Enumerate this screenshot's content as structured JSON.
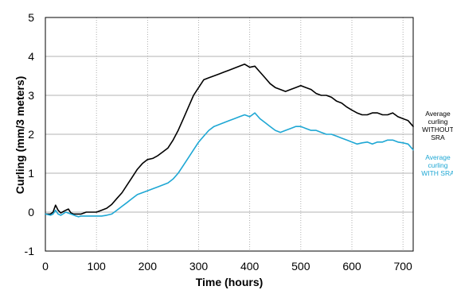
{
  "chart_data": {
    "type": "line",
    "xlabel": "Time (hours)",
    "ylabel": "Curling (mm/3 meters)",
    "xlim": [
      0,
      720
    ],
    "ylim": [
      -1,
      5
    ],
    "xticks": [
      0,
      100,
      200,
      300,
      400,
      500,
      600,
      700
    ],
    "yticks": [
      -1,
      0,
      1,
      2,
      3,
      4,
      5
    ],
    "grid": true,
    "legend_position": "right",
    "series": [
      {
        "name": "Average curling WITHOUT SRA",
        "legend_lines": [
          "Average",
          "curling",
          "WITHOUT",
          "SRA"
        ],
        "color": "#000000",
        "x": [
          0,
          10,
          15,
          20,
          25,
          30,
          40,
          45,
          50,
          55,
          60,
          65,
          70,
          80,
          90,
          100,
          110,
          120,
          130,
          140,
          150,
          160,
          170,
          180,
          190,
          200,
          210,
          220,
          230,
          240,
          250,
          260,
          270,
          280,
          290,
          300,
          310,
          320,
          330,
          340,
          350,
          360,
          370,
          380,
          390,
          400,
          410,
          420,
          430,
          440,
          450,
          460,
          470,
          480,
          490,
          500,
          510,
          520,
          530,
          540,
          550,
          560,
          570,
          580,
          590,
          600,
          610,
          620,
          630,
          640,
          650,
          660,
          670,
          680,
          690,
          700,
          710,
          720
        ],
        "y": [
          -0.05,
          -0.05,
          0.0,
          0.18,
          0.05,
          -0.02,
          0.05,
          0.08,
          -0.02,
          -0.05,
          -0.05,
          -0.05,
          -0.05,
          0.0,
          0.0,
          0.0,
          0.05,
          0.1,
          0.2,
          0.35,
          0.5,
          0.7,
          0.9,
          1.1,
          1.25,
          1.35,
          1.38,
          1.45,
          1.55,
          1.65,
          1.85,
          2.1,
          2.4,
          2.7,
          3.0,
          3.2,
          3.4,
          3.45,
          3.5,
          3.55,
          3.6,
          3.65,
          3.7,
          3.75,
          3.8,
          3.72,
          3.75,
          3.6,
          3.45,
          3.3,
          3.2,
          3.15,
          3.1,
          3.15,
          3.2,
          3.25,
          3.2,
          3.15,
          3.05,
          3.0,
          3.0,
          2.95,
          2.85,
          2.8,
          2.7,
          2.62,
          2.55,
          2.5,
          2.5,
          2.55,
          2.55,
          2.5,
          2.5,
          2.55,
          2.45,
          2.4,
          2.35,
          2.2
        ]
      },
      {
        "name": "Average curling WITH SRA",
        "legend_lines": [
          "Average",
          "curling",
          "WITH SRA"
        ],
        "color": "#1ea7d4",
        "x": [
          0,
          10,
          15,
          20,
          25,
          30,
          40,
          50,
          60,
          65,
          70,
          80,
          90,
          100,
          110,
          120,
          130,
          140,
          150,
          160,
          170,
          180,
          190,
          200,
          210,
          220,
          230,
          240,
          250,
          260,
          270,
          280,
          290,
          300,
          310,
          320,
          330,
          340,
          350,
          360,
          370,
          380,
          390,
          400,
          410,
          420,
          430,
          440,
          450,
          460,
          470,
          480,
          490,
          500,
          510,
          520,
          530,
          540,
          550,
          560,
          570,
          580,
          590,
          600,
          610,
          620,
          630,
          640,
          650,
          660,
          670,
          680,
          690,
          700,
          710,
          720
        ],
        "y": [
          -0.05,
          -0.08,
          -0.05,
          0.05,
          -0.05,
          -0.08,
          0.0,
          -0.05,
          -0.1,
          -0.12,
          -0.1,
          -0.1,
          -0.1,
          -0.1,
          -0.1,
          -0.08,
          -0.05,
          0.05,
          0.15,
          0.25,
          0.35,
          0.45,
          0.5,
          0.55,
          0.6,
          0.65,
          0.7,
          0.75,
          0.85,
          1.0,
          1.2,
          1.4,
          1.6,
          1.8,
          1.95,
          2.1,
          2.2,
          2.25,
          2.3,
          2.35,
          2.4,
          2.45,
          2.5,
          2.45,
          2.55,
          2.4,
          2.3,
          2.2,
          2.1,
          2.05,
          2.1,
          2.15,
          2.2,
          2.2,
          2.15,
          2.1,
          2.1,
          2.05,
          2.0,
          2.0,
          1.95,
          1.9,
          1.85,
          1.8,
          1.75,
          1.78,
          1.8,
          1.75,
          1.8,
          1.8,
          1.85,
          1.85,
          1.8,
          1.78,
          1.75,
          1.6
        ]
      }
    ]
  }
}
